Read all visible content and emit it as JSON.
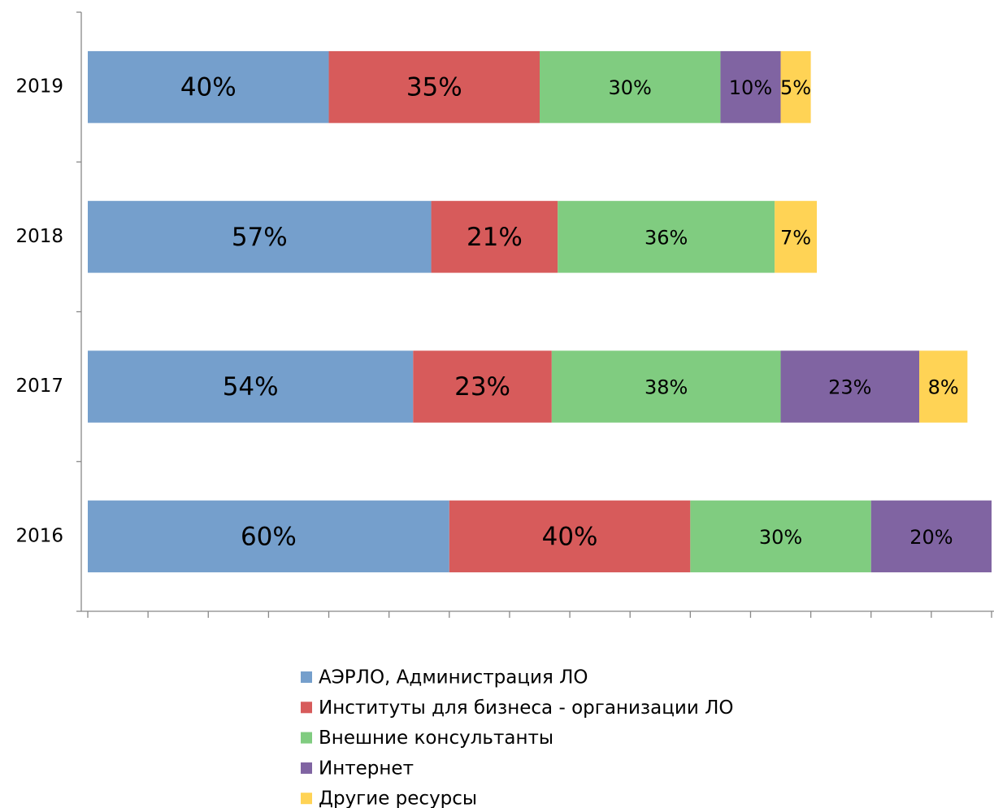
{
  "chart_data": {
    "type": "stacked-bar-horizontal",
    "categories": [
      "2016",
      "2017",
      "2018",
      "2019"
    ],
    "series": [
      {
        "name": "АЭРЛО, Администрация ЛО",
        "color": "#759fcc",
        "values": [
          60,
          54,
          57,
          40
        ],
        "value_labels": [
          "60%",
          "54%",
          "57%",
          "40%"
        ]
      },
      {
        "name": "Институты для бизнеса - организации ЛО",
        "color": "#d75b5b",
        "values": [
          40,
          23,
          21,
          35
        ],
        "value_labels": [
          "40%",
          "23%",
          "21%",
          "35%"
        ]
      },
      {
        "name": "Внешние консультанты",
        "color": "#80cc80",
        "values": [
          30,
          38,
          36,
          30
        ],
        "value_labels": [
          "30%",
          "38%",
          "36%",
          "30%"
        ]
      },
      {
        "name": "Интернет",
        "color": "#8064a2",
        "values": [
          20,
          23,
          null,
          10
        ],
        "value_labels": [
          "20%",
          "23%",
          null,
          "10%"
        ]
      },
      {
        "name": "Другие ресурсы",
        "color": "#ffd355",
        "values": [
          null,
          8,
          7,
          5
        ],
        "value_labels": [
          null,
          "8%",
          "7%",
          "5%"
        ]
      }
    ],
    "xlim": [
      0,
      150
    ],
    "xticks": [
      0,
      10,
      20,
      30,
      40,
      50,
      60,
      70,
      80,
      90,
      100,
      110,
      120,
      130,
      140,
      150
    ],
    "legend": "bottom"
  }
}
